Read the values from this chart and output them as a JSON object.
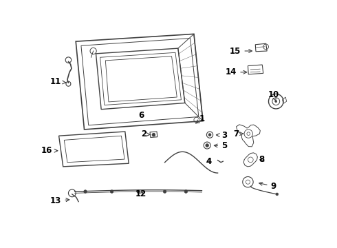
{
  "bg_color": "#ffffff",
  "line_color": "#404040",
  "label_color": "#000000",
  "lw_main": 1.0,
  "lw_thin": 0.6,
  "font_size": 8.5
}
